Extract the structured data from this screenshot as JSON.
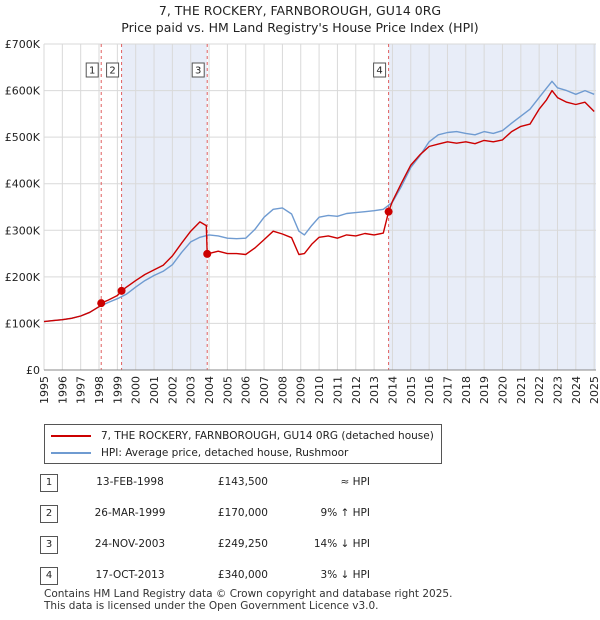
{
  "title_line1": "7, THE ROCKERY, FARNBOROUGH, GU14 0RG",
  "title_line2": "Price paid vs. HM Land Registry's House Price Index (HPI)",
  "legend": {
    "property": "7, THE ROCKERY, FARNBOROUGH, GU14 0RG (detached house)",
    "hpi": "HPI: Average price, detached house, Rushmoor"
  },
  "colors": {
    "property": "#cc0000",
    "hpi": "#6f9bd1",
    "shade": "#e8edf8",
    "vline": "#e06060"
  },
  "sales": [
    {
      "num": "1",
      "date": "13-FEB-1998",
      "price": "£143,500",
      "hpi": "≈ HPI"
    },
    {
      "num": "2",
      "date": "26-MAR-1999",
      "price": "£170,000",
      "hpi": "9% ↑ HPI"
    },
    {
      "num": "3",
      "date": "24-NOV-2003",
      "price": "£249,250",
      "hpi": "14% ↓ HPI"
    },
    {
      "num": "4",
      "date": "17-OCT-2013",
      "price": "£340,000",
      "hpi": "3% ↓ HPI"
    }
  ],
  "footer": {
    "line1": "Contains HM Land Registry data © Crown copyright and database right 2025.",
    "line2": "This data is licensed under the Open Government Licence v3.0."
  },
  "chart_data": {
    "type": "line",
    "title": "7, THE ROCKERY, FARNBOROUGH, GU14 0RG",
    "subtitle": "Price paid vs. HM Land Registry's House Price Index (HPI)",
    "xlabel": "",
    "ylabel": "",
    "xlim": [
      1995,
      2025.1
    ],
    "ylim": [
      0,
      700000
    ],
    "yticks": [
      0,
      100000,
      200000,
      300000,
      400000,
      500000,
      600000,
      700000
    ],
    "ytick_labels": [
      "£0",
      "£100K",
      "£200K",
      "£300K",
      "£400K",
      "£500K",
      "£600K",
      "£700K"
    ],
    "xticks": [
      1995,
      1996,
      1997,
      1998,
      1999,
      2000,
      2001,
      2002,
      2003,
      2004,
      2005,
      2006,
      2007,
      2008,
      2009,
      2010,
      2011,
      2012,
      2013,
      2014,
      2015,
      2016,
      2017,
      2018,
      2019,
      2020,
      2021,
      2022,
      2023,
      2024,
      2025
    ],
    "grid": true,
    "shaded_ranges": [
      [
        1999.23,
        2003.9
      ],
      [
        2013.79,
        2025.1
      ]
    ],
    "sale_markers": [
      {
        "label": "1",
        "x": 1998.12,
        "y": 143500
      },
      {
        "label": "2",
        "x": 1999.23,
        "y": 170000
      },
      {
        "label": "3",
        "x": 2003.9,
        "y": 249250
      },
      {
        "label": "4",
        "x": 2013.79,
        "y": 340000
      }
    ],
    "series": [
      {
        "name": "7, THE ROCKERY, FARNBOROUGH, GU14 0RG (detached house)",
        "x": [
          1995.0,
          1995.5,
          1996.0,
          1996.5,
          1997.0,
          1997.5,
          1998.0,
          1998.12,
          1998.5,
          1999.0,
          1999.23,
          1999.5,
          2000.0,
          2000.5,
          2001.0,
          2001.5,
          2002.0,
          2002.5,
          2003.0,
          2003.5,
          2003.85,
          2003.9,
          2004.5,
          2005.0,
          2005.5,
          2006.0,
          2006.5,
          2007.0,
          2007.5,
          2008.0,
          2008.5,
          2008.9,
          2009.2,
          2009.6,
          2010.0,
          2010.5,
          2011.0,
          2011.5,
          2012.0,
          2012.5,
          2013.0,
          2013.5,
          2013.79,
          2014.0,
          2014.5,
          2015.0,
          2015.5,
          2016.0,
          2016.5,
          2017.0,
          2017.5,
          2018.0,
          2018.5,
          2019.0,
          2019.5,
          2020.0,
          2020.5,
          2021.0,
          2021.5,
          2022.0,
          2022.4,
          2022.7,
          2023.0,
          2023.5,
          2024.0,
          2024.5,
          2025.0
        ],
        "values": [
          104000,
          106000,
          108000,
          111000,
          116000,
          124000,
          136000,
          143500,
          150000,
          160000,
          170000,
          178000,
          192000,
          205000,
          215000,
          225000,
          245000,
          272000,
          298000,
          318000,
          310000,
          249250,
          255000,
          250000,
          250000,
          248000,
          262000,
          280000,
          298000,
          292000,
          284000,
          248000,
          250000,
          270000,
          285000,
          288000,
          283000,
          290000,
          288000,
          293000,
          290000,
          294000,
          340000,
          362000,
          402000,
          440000,
          462000,
          480000,
          485000,
          490000,
          487000,
          490000,
          486000,
          493000,
          490000,
          494000,
          512000,
          523000,
          528000,
          560000,
          580000,
          600000,
          585000,
          575000,
          570000,
          575000,
          555000
        ]
      },
      {
        "name": "HPI: Average price, detached house, Rushmoor",
        "x": [
          1995.0,
          1995.5,
          1996.0,
          1996.5,
          1997.0,
          1997.5,
          1998.0,
          1998.5,
          1999.0,
          1999.5,
          2000.0,
          2000.5,
          2001.0,
          2001.5,
          2002.0,
          2002.5,
          2003.0,
          2003.5,
          2004.0,
          2004.5,
          2005.0,
          2005.5,
          2006.0,
          2006.5,
          2007.0,
          2007.5,
          2008.0,
          2008.5,
          2008.9,
          2009.2,
          2009.6,
          2010.0,
          2010.5,
          2011.0,
          2011.5,
          2012.0,
          2012.5,
          2013.0,
          2013.5,
          2014.0,
          2014.5,
          2015.0,
          2015.5,
          2016.0,
          2016.5,
          2017.0,
          2017.5,
          2018.0,
          2018.5,
          2019.0,
          2019.5,
          2020.0,
          2020.5,
          2021.0,
          2021.5,
          2022.0,
          2022.4,
          2022.7,
          2023.0,
          2023.5,
          2024.0,
          2024.5,
          2025.0
        ],
        "values": [
          104000,
          106000,
          108000,
          111000,
          116000,
          124000,
          136000,
          145000,
          153000,
          163000,
          178000,
          192000,
          203000,
          212000,
          226000,
          252000,
          275000,
          285000,
          290000,
          288000,
          283000,
          282000,
          283000,
          302000,
          328000,
          345000,
          348000,
          335000,
          298000,
          290000,
          310000,
          328000,
          332000,
          330000,
          336000,
          338000,
          340000,
          342000,
          345000,
          360000,
          395000,
          435000,
          460000,
          490000,
          505000,
          510000,
          512000,
          508000,
          505000,
          512000,
          508000,
          514000,
          530000,
          545000,
          560000,
          585000,
          605000,
          620000,
          606000,
          600000,
          592000,
          600000,
          592000
        ]
      }
    ]
  }
}
